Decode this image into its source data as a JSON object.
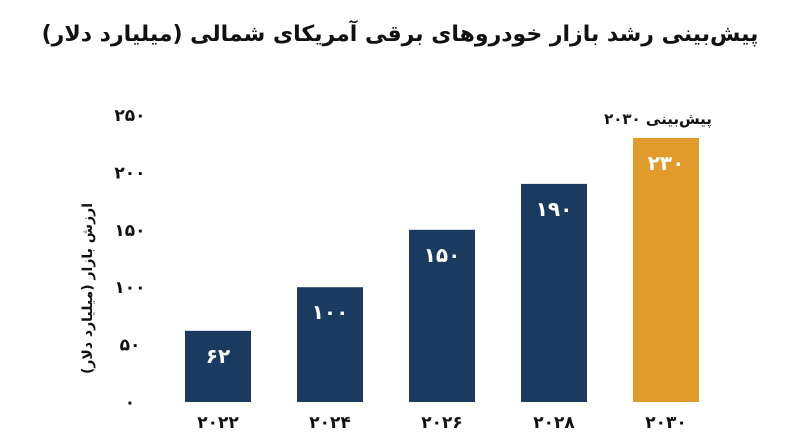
{
  "chart_data": {
    "type": "bar",
    "title": "پیش‌بینی رشد بازار خودروهای برقی آمریکای شمالی (میلیارد دلار)",
    "xlabel": "",
    "ylabel": "ارزش بازار (میلیارد دلار)",
    "categories": [
      "2022",
      "2024",
      "2026",
      "2028",
      "2030"
    ],
    "category_labels": [
      "۲۰۲۲",
      "۲۰۲۴",
      "۲۰۲۶",
      "۲۰۲۸",
      "۲۰۳۰"
    ],
    "values": [
      62,
      100,
      150,
      190,
      230
    ],
    "value_labels": [
      "۶۲",
      "۱۰۰",
      "۱۵۰",
      "۱۹۰",
      "۲۳۰"
    ],
    "ylim": [
      0,
      250
    ],
    "y_ticks": [
      0,
      50,
      100,
      150,
      200,
      250
    ],
    "y_tick_labels": [
      "۰",
      "۵۰",
      "۱۰۰",
      "۱۵۰",
      "۲۰۰",
      "۲۵۰"
    ],
    "bar_colors": [
      "#1b3a5f",
      "#1b3a5f",
      "#1b3a5f",
      "#1b3a5f",
      "#e09b2a"
    ],
    "annotation": {
      "text": "پیش‌بینی ۲۰۳۰",
      "category": "2030"
    },
    "grid": false,
    "legend": "none"
  }
}
